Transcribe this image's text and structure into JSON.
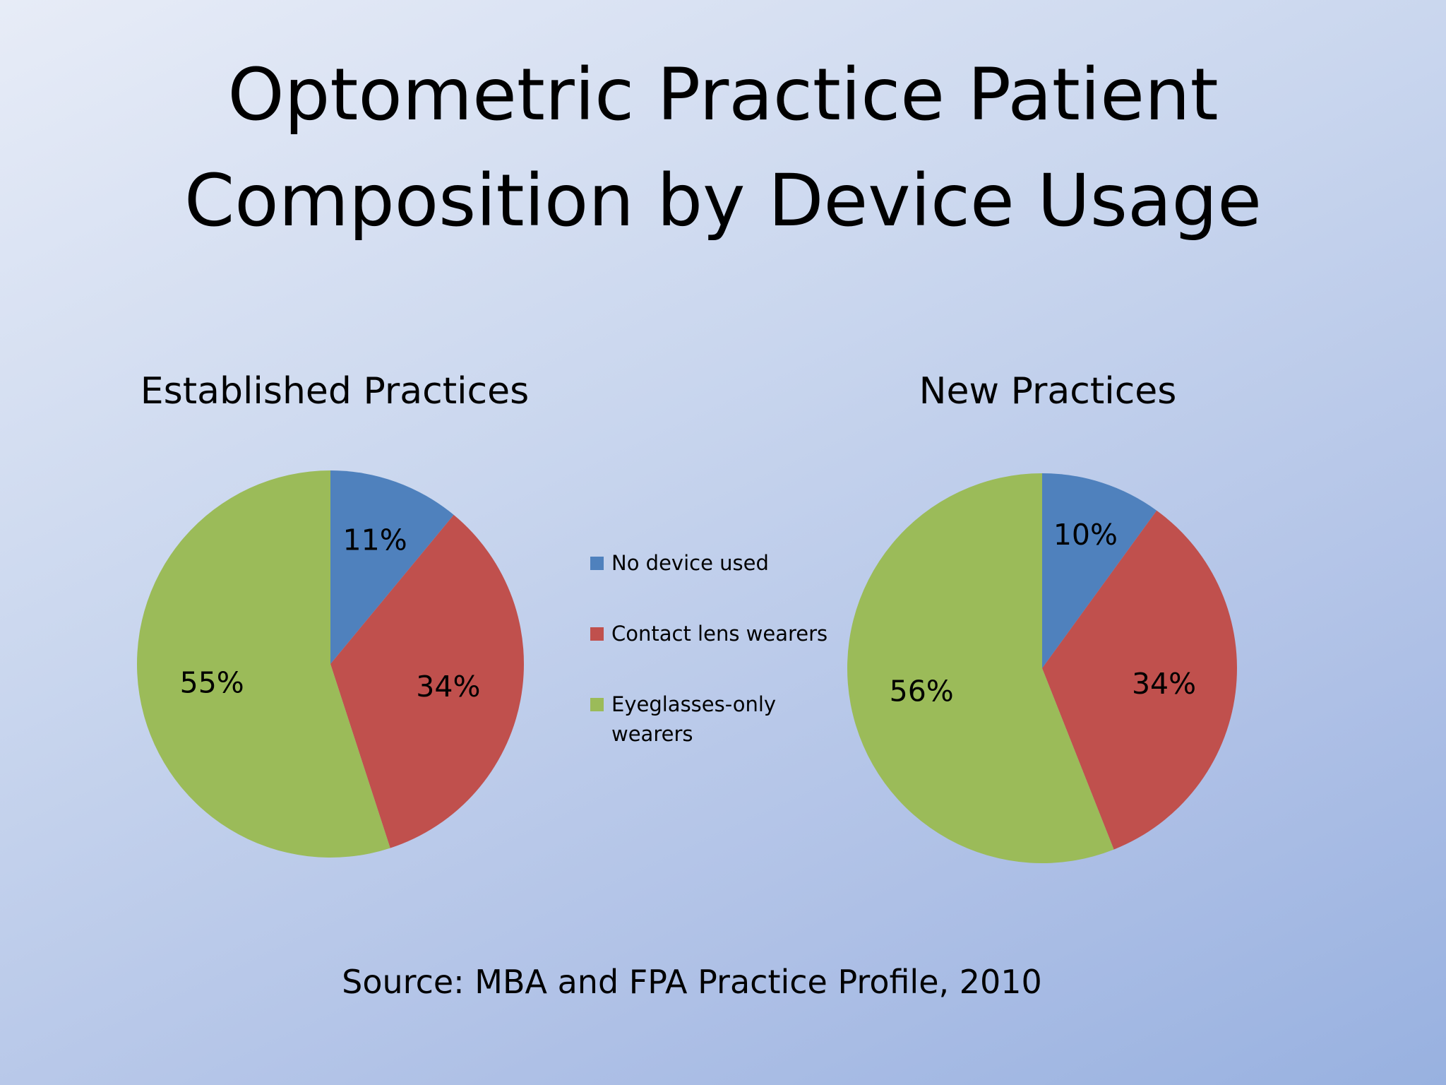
{
  "title": [
    "Optometric Practice Patient",
    "Composition by Device Usage"
  ],
  "source": "Source: MBA and FPA Practice Profile, 2010",
  "colors": {
    "no_device": "#4f81bd",
    "contact_lens": "#c0504d",
    "eyeglasses": "#9bbb59"
  },
  "legend": [
    {
      "label": "No device used",
      "color": "#4f81bd"
    },
    {
      "label": "Contact lens wearers",
      "color": "#c0504d"
    },
    {
      "label": "Eyeglasses-only wearers",
      "color": "#9bbb59"
    }
  ],
  "chart_data": [
    {
      "type": "pie",
      "title": "Established Practices",
      "categories": [
        "No device used",
        "Contact lens wearers",
        "Eyeglasses-only wearers"
      ],
      "values": [
        11,
        34,
        55
      ],
      "labels": [
        "11%",
        "34%",
        "55%"
      ],
      "legend_placement": "right"
    },
    {
      "type": "pie",
      "title": "New Practices",
      "categories": [
        "No device used",
        "Contact lens wearers",
        "Eyeglasses-only wearers"
      ],
      "values": [
        10,
        34,
        56
      ],
      "labels": [
        "10%",
        "34%",
        "56%"
      ],
      "legend_placement": "left"
    }
  ]
}
